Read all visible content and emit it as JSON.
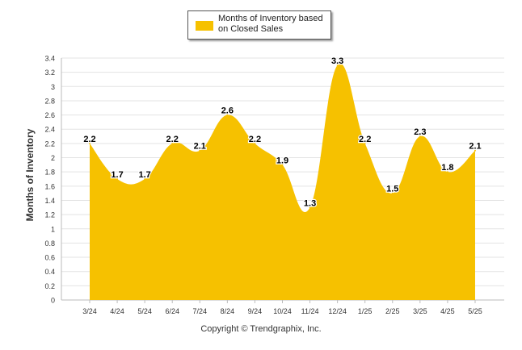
{
  "legend": {
    "label": "Months of Inventory based on Closed Sales",
    "color": "#F6C100"
  },
  "footer": {
    "copyright": "Copyright © Trendgraphix, Inc."
  },
  "chart_data": {
    "type": "area",
    "categories": [
      "3/24",
      "4/24",
      "5/24",
      "6/24",
      "7/24",
      "8/24",
      "9/24",
      "10/24",
      "11/24",
      "12/24",
      "1/25",
      "2/25",
      "3/25",
      "4/25",
      "5/25"
    ],
    "series": [
      {
        "name": "Months of Inventory based on Closed Sales",
        "values": [
          2.2,
          1.7,
          1.7,
          2.2,
          2.1,
          2.6,
          2.2,
          1.9,
          1.3,
          3.3,
          2.2,
          1.5,
          2.3,
          1.8,
          2.1
        ],
        "color": "#F6C100"
      }
    ],
    "ylabel": "Months of Inventory",
    "ylim": [
      0,
      3.4
    ],
    "yticks": [
      "0",
      "0.2",
      "0.4",
      "0.6",
      "0.8",
      "1",
      "1.2",
      "1.4",
      "1.6",
      "1.8",
      "2",
      "2.2",
      "2.4",
      "2.6",
      "2.8",
      "3",
      "3.2",
      "3.4"
    ],
    "grid": true,
    "legend_position": "top-center"
  }
}
